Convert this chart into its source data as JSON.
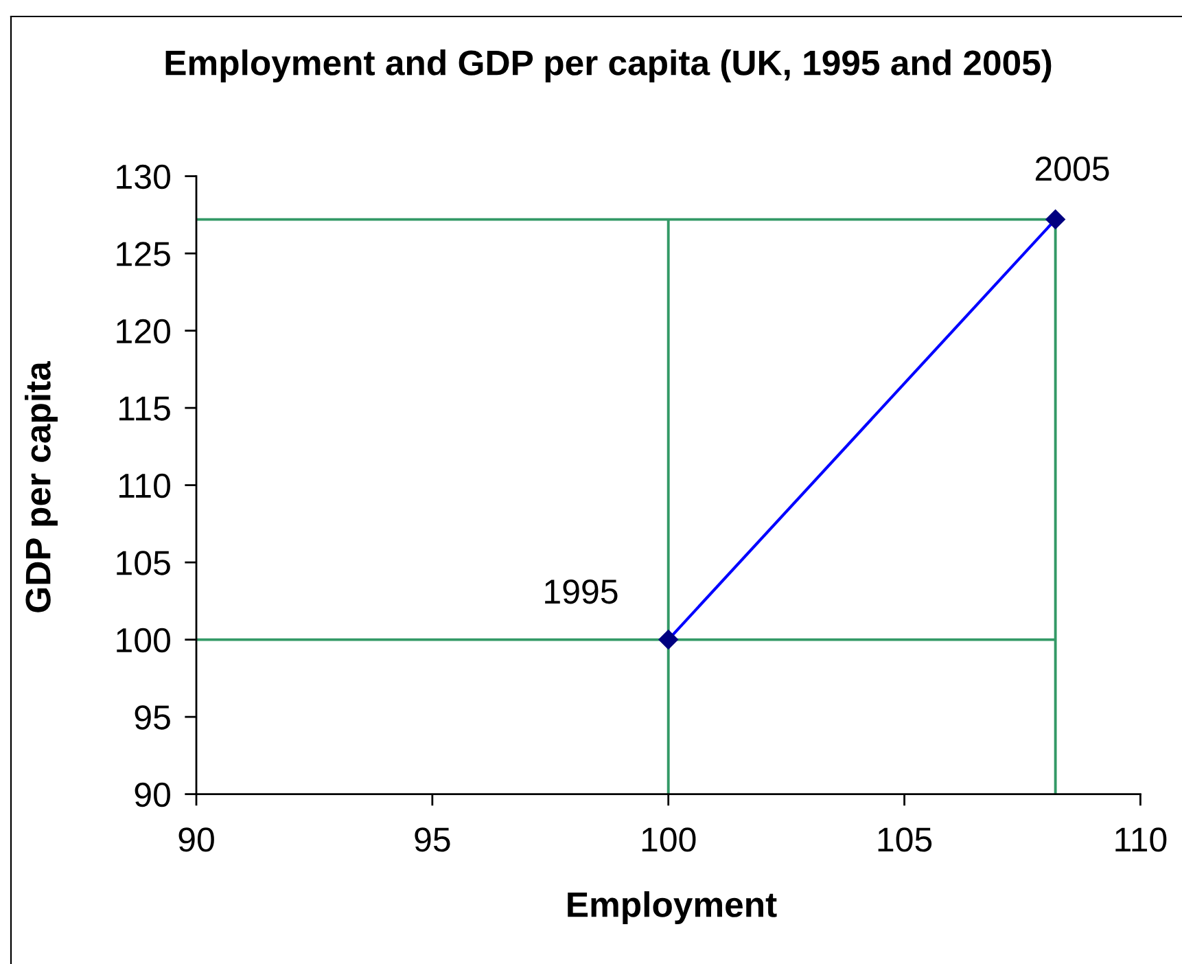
{
  "chart_data": {
    "type": "line",
    "title": "Employment and GDP per capita (UK, 1995 and 2005)",
    "xlabel": "Employment",
    "ylabel": "GDP per capita",
    "series": [
      {
        "color": "#339966",
        "x": [
          90,
          108.2
        ],
        "values": [
          127.2,
          127.2
        ]
      },
      {
        "color": "#339966",
        "x": [
          90,
          108.2
        ],
        "values": [
          100,
          100
        ]
      },
      {
        "color": "#339966",
        "x": [
          100,
          100
        ],
        "values": [
          90,
          127.2
        ]
      },
      {
        "color": "#339966",
        "x": [
          108.2,
          108.2
        ],
        "values": [
          90,
          127.2
        ]
      },
      {
        "color": "#0000ff",
        "x": [
          100,
          108.2
        ],
        "values": [
          100,
          127.2
        ],
        "marker": "diamond"
      }
    ],
    "annotations": [
      "1995",
      "2005"
    ],
    "xlim": [
      90,
      110
    ],
    "xticks": [
      90,
      95,
      100,
      105,
      110
    ],
    "ylim": [
      90,
      130
    ],
    "yticks": [
      90,
      95,
      100,
      105,
      110,
      115,
      120,
      125,
      130
    ],
    "line_style": "solid"
  }
}
